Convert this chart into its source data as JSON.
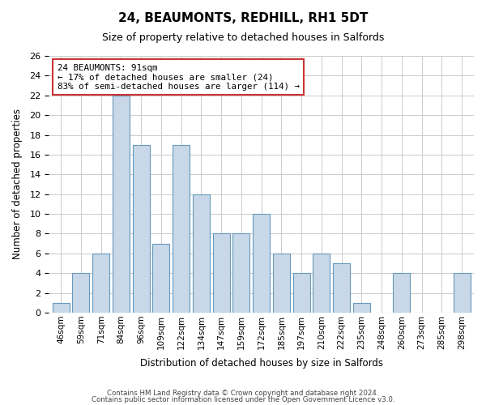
{
  "title": "24, BEAUMONTS, REDHILL, RH1 5DT",
  "subtitle": "Size of property relative to detached houses in Salfords",
  "xlabel": "Distribution of detached houses by size in Salfords",
  "ylabel": "Number of detached properties",
  "bar_labels": [
    "46sqm",
    "59sqm",
    "71sqm",
    "84sqm",
    "96sqm",
    "109sqm",
    "122sqm",
    "134sqm",
    "147sqm",
    "159sqm",
    "172sqm",
    "185sqm",
    "197sqm",
    "210sqm",
    "222sqm",
    "235sqm",
    "248sqm",
    "260sqm",
    "273sqm",
    "285sqm",
    "298sqm"
  ],
  "bar_values": [
    1,
    4,
    6,
    22,
    17,
    7,
    17,
    12,
    8,
    8,
    10,
    6,
    4,
    6,
    5,
    1,
    0,
    4,
    0,
    0,
    4
  ],
  "bar_color": "#c8d8e8",
  "bar_edge_color": "#6699bb",
  "highlight_bar_index": 3,
  "annotation_title": "24 BEAUMONTS: 91sqm",
  "annotation_line1": "← 17% of detached houses are smaller (24)",
  "annotation_line2": "83% of semi-detached houses are larger (114) →",
  "annotation_box_color": "#ffffff",
  "annotation_box_edge": "#cc3333",
  "ylim": [
    0,
    26
  ],
  "yticks": [
    0,
    2,
    4,
    6,
    8,
    10,
    12,
    14,
    16,
    18,
    20,
    22,
    24,
    26
  ],
  "footnote1": "Contains HM Land Registry data © Crown copyright and database right 2024.",
  "footnote2": "Contains public sector information licensed under the Open Government Licence v3.0.",
  "background_color": "#ffffff",
  "grid_color": "#cccccc"
}
